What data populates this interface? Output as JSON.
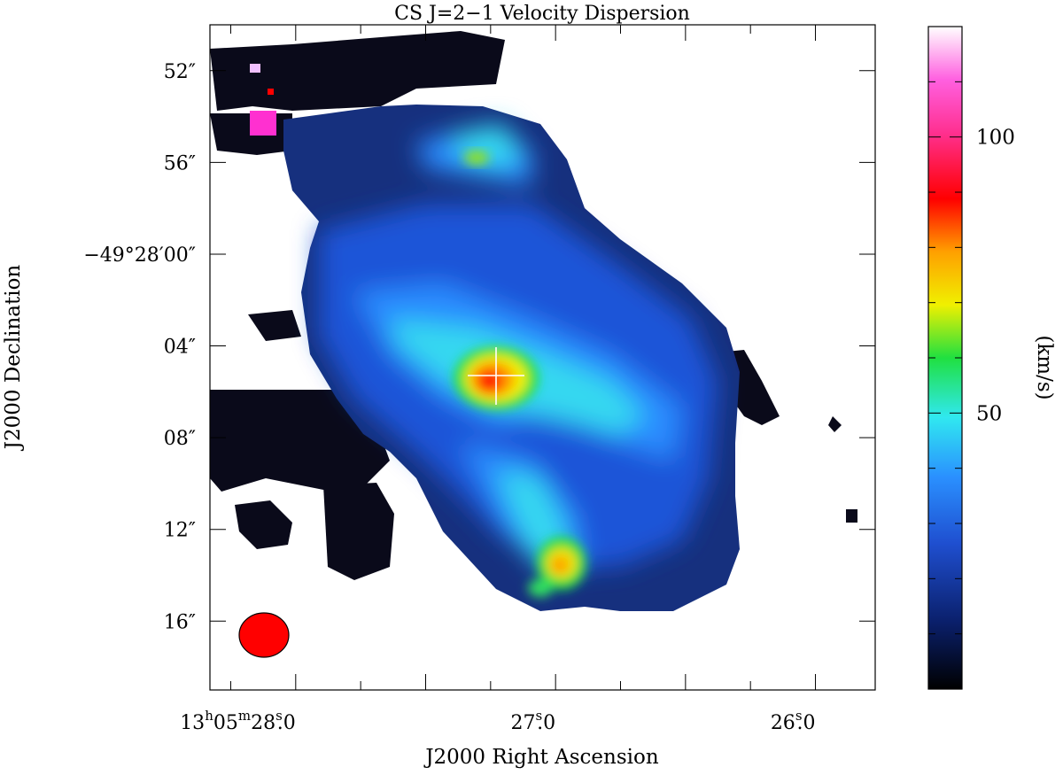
{
  "chart_data": {
    "type": "heatmap",
    "title": "CS J=2−1 Velocity Dispersion",
    "xlabel": "J2000 Right Ascension",
    "ylabel": "J2000 Declination",
    "x_ticks": [
      {
        "main": "13",
        "sup1": "h",
        "mid": "05",
        "sup2": "m",
        "tail": "28",
        "sup3": "s",
        "dec": ".0",
        "ra_s": 28.0
      },
      {
        "main": "27",
        "sup3": "s",
        "dec": ".0",
        "ra_s": 27.0
      },
      {
        "main": "26",
        "sup3": "s",
        "dec": ".0",
        "ra_s": 26.0
      }
    ],
    "y_ticks": [
      {
        "label": "52″",
        "dec_arcsec": -8
      },
      {
        "label": "56″",
        "dec_arcsec": -4
      },
      {
        "label": "−49°28′00″",
        "dec_arcsec": 0
      },
      {
        "label": "04″",
        "dec_arcsec": 4
      },
      {
        "label": "08″",
        "dec_arcsec": 8
      },
      {
        "label": "12″",
        "dec_arcsec": 12
      },
      {
        "label": "16″",
        "dec_arcsec": 16
      }
    ],
    "xlim_ra_s": [
      28.33,
      25.77
    ],
    "ylim_offset_arcsec": [
      -10.0,
      19.0
    ],
    "colorbar": {
      "label": "(km/s)",
      "range": [
        0,
        120
      ],
      "ticks": [
        {
          "label": "50",
          "value": 50
        },
        {
          "label": "100",
          "value": 100
        }
      ],
      "minor_step": 10,
      "colormap": [
        "#000000",
        "#0a1f6a",
        "#1f4fd0",
        "#2a90ff",
        "#30e8f0",
        "#20e040",
        "#f0f000",
        "#ffa000",
        "#ff0000",
        "#ff3090",
        "#ff60e0",
        "#ffffff"
      ]
    },
    "values_kms": {
      "background_envelope": 22,
      "extended_ridge": 45,
      "central_peak": 85,
      "southern_clump": 75,
      "northern_clump": 62,
      "nw_patch": 110
    },
    "marker": "central cross",
    "beam": "filled ellipse, bottom-left",
    "grid": false
  }
}
